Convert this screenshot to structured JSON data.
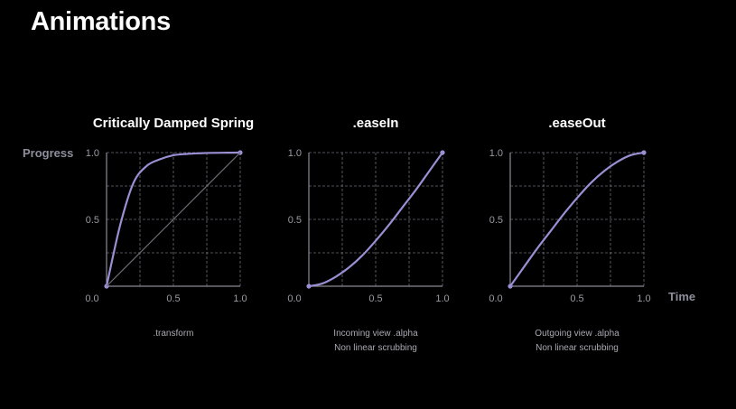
{
  "slide": {
    "title": "Animations",
    "y_axis_name": "Progress",
    "x_axis_name": "Time"
  },
  "colors": {
    "background": "#000000",
    "curve": "#9b8fd4",
    "grid": "#6e6e78",
    "axis": "#8a8a94",
    "linear_reference": "#6a6a72"
  },
  "chart_data": [
    {
      "type": "line",
      "title": "Critically Damped Spring",
      "caption": [
        ".transform"
      ],
      "xlim": [
        0,
        1
      ],
      "ylim": [
        0,
        1
      ],
      "x_ticks": [
        "0.0",
        "0.5",
        "1.0"
      ],
      "y_ticks": [
        "0.0",
        "0.5",
        "1.0"
      ],
      "grid": true,
      "series": [
        {
          "x": [
            0,
            0.1,
            0.2,
            0.3,
            0.4,
            0.5,
            0.6,
            0.7,
            0.8,
            0.9,
            1.0
          ],
          "y": [
            0,
            0.45,
            0.77,
            0.9,
            0.95,
            0.98,
            0.99,
            0.995,
            0.998,
            0.999,
            1.0
          ]
        },
        {
          "x": [
            0,
            1
          ],
          "y": [
            0,
            1
          ],
          "style": "reference"
        }
      ]
    },
    {
      "type": "line",
      "title": ".easeIn",
      "caption": [
        "Incoming view .alpha",
        "Non linear scrubbing"
      ],
      "xlim": [
        0,
        1
      ],
      "ylim": [
        0,
        1
      ],
      "x_ticks": [
        "0.0",
        "0.5",
        "1.0"
      ],
      "y_ticks": [
        "0.0",
        "0.5",
        "1.0"
      ],
      "grid": true,
      "series": [
        {
          "x": [
            0,
            0.1,
            0.2,
            0.3,
            0.4,
            0.5,
            0.6,
            0.7,
            0.8,
            0.9,
            1.0
          ],
          "y": [
            0,
            0.02,
            0.07,
            0.14,
            0.23,
            0.34,
            0.46,
            0.59,
            0.72,
            0.86,
            1.0
          ]
        }
      ]
    },
    {
      "type": "line",
      "title": ".easeOut",
      "caption": [
        "Outgoing view .alpha",
        "Non linear scrubbing"
      ],
      "xlim": [
        0,
        1
      ],
      "ylim": [
        0,
        1
      ],
      "x_ticks": [
        "0.0",
        "0.5",
        "1.0"
      ],
      "y_ticks": [
        "0.0",
        "0.5",
        "1.0"
      ],
      "grid": true,
      "series": [
        {
          "x": [
            0,
            0.1,
            0.2,
            0.3,
            0.4,
            0.5,
            0.6,
            0.7,
            0.8,
            0.9,
            1.0
          ],
          "y": [
            0,
            0.14,
            0.28,
            0.41,
            0.54,
            0.66,
            0.77,
            0.86,
            0.93,
            0.98,
            1.0
          ]
        }
      ]
    }
  ]
}
